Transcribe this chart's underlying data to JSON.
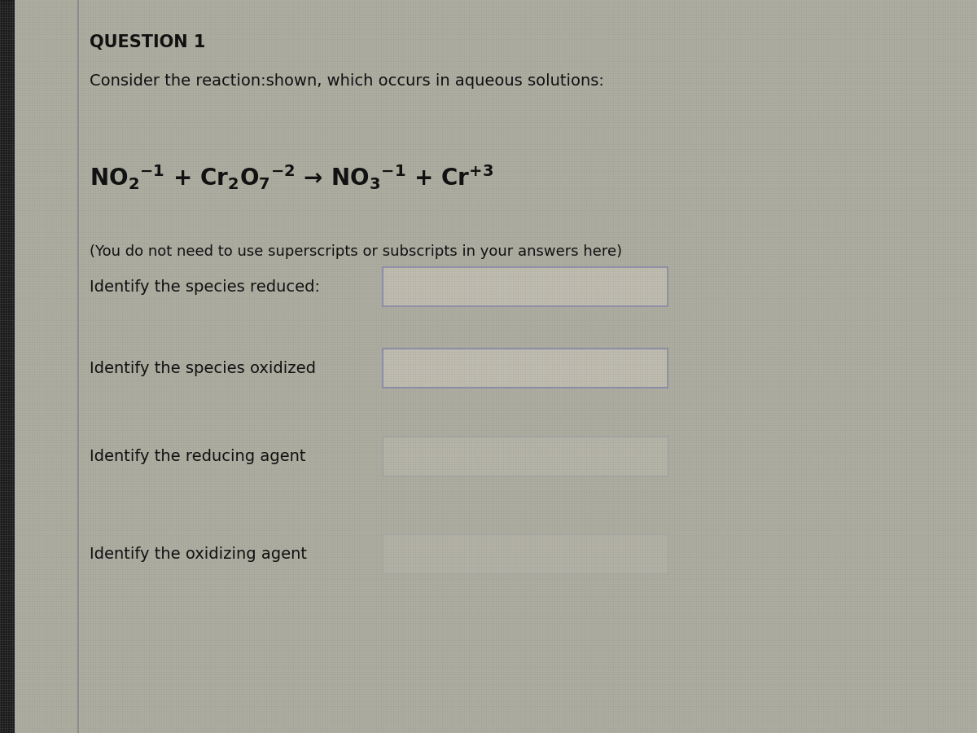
{
  "title": "QUESTION 1",
  "bg_color": "#adadA0",
  "panel_bg": "#b8b5a8",
  "left_strip_color": "#404040",
  "left_strip2_color": "#888880",
  "text_color": "#111111",
  "intro_text": "Consider the reaction:shown, which occurs in aqueous solutions:",
  "note_text": "(You do not need to use superscripts or subscripts in your answers here)",
  "questions": [
    "Identify the species reduced:",
    "Identify the species oxidized",
    "Identify the reducing agent",
    "Identify the oxidizing agent"
  ],
  "box_fill": "#c0bdb0",
  "box_edge": "#8888aa",
  "title_fontsize": 15,
  "body_fontsize": 14,
  "equation_fontsize": 20,
  "grid_color": "#909090",
  "grid_alpha": 0.25
}
